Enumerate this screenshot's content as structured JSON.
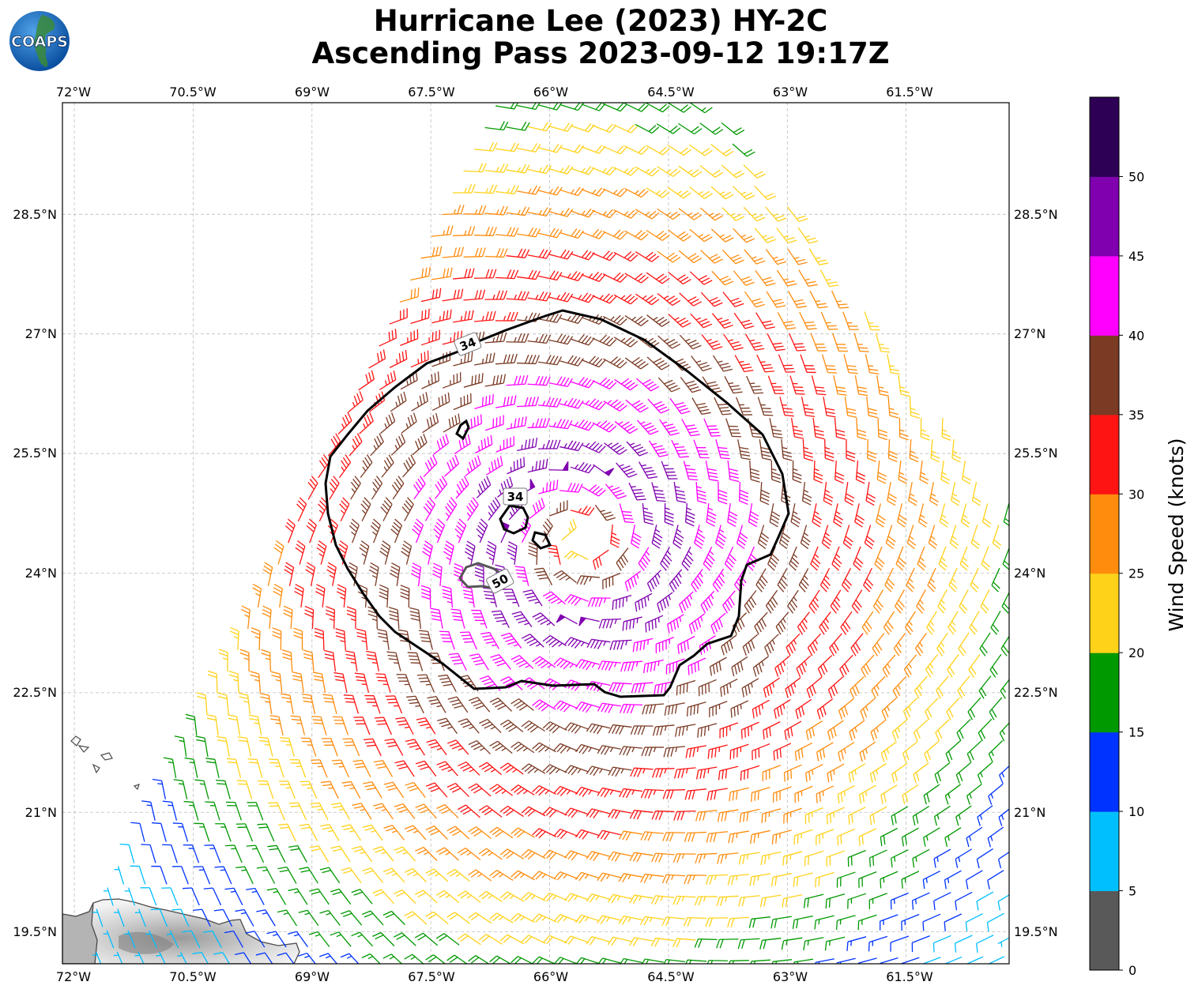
{
  "header": {
    "title_line1": "Hurricane Lee (2023) HY-2C",
    "title_line2": "Ascending Pass 2023-09-12 19:17Z",
    "logo_text": "COAPS"
  },
  "map": {
    "lon_ticks": [
      "72°W",
      "70.5°W",
      "69°W",
      "67.5°W",
      "66°W",
      "64.5°W",
      "63°W",
      "61.5°W"
    ],
    "lat_ticks": [
      "28.5°N",
      "27°N",
      "25.5°N",
      "24°N",
      "22.5°N",
      "21°N",
      "19.5°N"
    ],
    "lon_range": [
      -72.15,
      -60.2
    ],
    "lat_range": [
      19.1,
      29.9
    ],
    "storm_center": {
      "lon": -65.6,
      "lat": 24.4
    },
    "contours": [
      {
        "label": "34",
        "color": "#000000"
      },
      {
        "label": "34",
        "color": "#000000"
      },
      {
        "label": "50",
        "color": "#555555"
      }
    ]
  },
  "colorbar": {
    "label": "Wind Speed (knots)",
    "tick_labels": [
      "0",
      "5",
      "10",
      "15",
      "20",
      "25",
      "30",
      "35",
      "40",
      "45",
      "50"
    ],
    "bins": [
      {
        "range": "0-5",
        "color": "#595959"
      },
      {
        "range": "5-10",
        "color": "#00bfff"
      },
      {
        "range": "10-15",
        "color": "#0033ff"
      },
      {
        "range": "15-20",
        "color": "#009900"
      },
      {
        "range": "20-25",
        "color": "#ffd21a"
      },
      {
        "range": "25-30",
        "color": "#ff8c0d"
      },
      {
        "range": "30-35",
        "color": "#ff1414"
      },
      {
        "range": "35-40",
        "color": "#7a3a24"
      },
      {
        "range": "40-45",
        "color": "#ff00ff"
      },
      {
        "range": "45-50",
        "color": "#8000b0"
      },
      {
        "range": "50+",
        "color": "#2e0055"
      }
    ]
  }
}
